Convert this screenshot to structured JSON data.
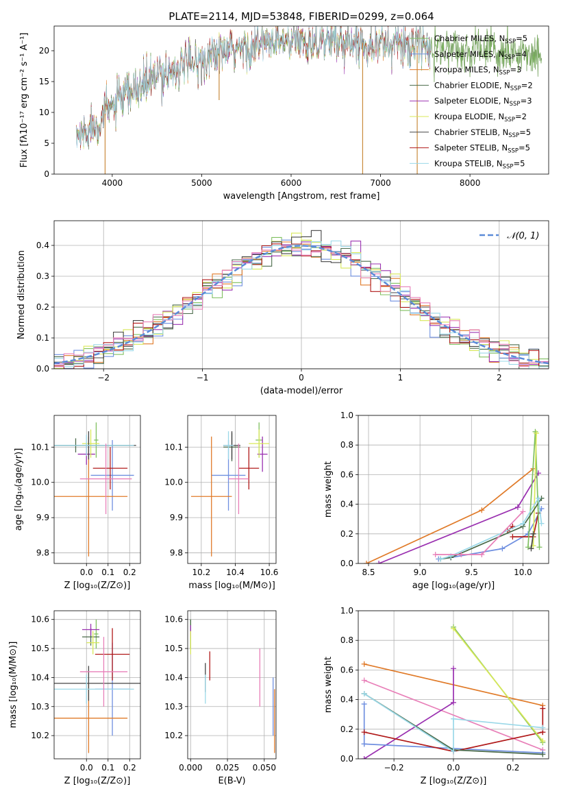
{
  "figure": {
    "title": "PLATE=2114, MJD=53848, FIBERID=0299, z=0.064"
  },
  "models": [
    {
      "name": "Chabrier MILES",
      "nssp": "5",
      "color": "#7fbf5f"
    },
    {
      "name": "Salpeter MILES",
      "nssp": "4",
      "color": "#6f8fe0"
    },
    {
      "name": "Kroupa MILES",
      "nssp": "3",
      "color": "#e07a28"
    },
    {
      "name": "Chabrier ELODIE",
      "nssp": "2",
      "color": "#4a6a4a"
    },
    {
      "name": "Salpeter ELODIE",
      "nssp": "3",
      "color": "#9a30b0"
    },
    {
      "name": "Kroupa ELODIE",
      "nssp": "2",
      "color": "#d8e858"
    },
    {
      "name": "Chabrier STELIB",
      "nssp": "5",
      "color": "#444444"
    },
    {
      "name": "Salpeter STELIB",
      "nssp": "5",
      "color": "#b01818"
    },
    {
      "name": "Kroupa STELIB",
      "nssp": "5",
      "color": "#9ad8e8"
    }
  ],
  "chart_data": [
    {
      "id": "spectrum",
      "type": "line",
      "xlabel": "wavelength [Angstrom, rest frame]",
      "ylabel": "Flux [fλ10⁻¹⁷ erg cm⁻² s⁻¹ A⁻¹]",
      "xlim": [
        3350,
        8880
      ],
      "ylim": [
        0,
        24
      ],
      "xticks": [
        4000,
        5000,
        6000,
        7000,
        8000
      ],
      "yticks": [
        0,
        5,
        10,
        15,
        20
      ],
      "legend": "top-right",
      "continuum": {
        "x": [
          3600,
          3800,
          4000,
          4200,
          4400,
          4600,
          4800,
          5000,
          5200,
          5400,
          5600,
          5800,
          6000,
          6200,
          6400,
          6600,
          6800,
          7000,
          7200,
          7400,
          7600,
          7800,
          8000,
          8200,
          8400,
          8600,
          8800
        ],
        "y": [
          6,
          8,
          11,
          13,
          15,
          16.5,
          17.5,
          18.5,
          19.5,
          20.2,
          20.8,
          21.2,
          21.4,
          21.6,
          21.6,
          21.5,
          21.3,
          21.2,
          21.0,
          20.8,
          20.5,
          20.2,
          20.0,
          19.8,
          19.5,
          19.2,
          19.0
        ]
      }
    },
    {
      "id": "residuals",
      "type": "line",
      "xlabel": "(data-model)/error",
      "ylabel": "Normed distribution",
      "xlim": [
        -2.5,
        2.5
      ],
      "ylim": [
        0,
        0.48
      ],
      "xticks": [
        -2,
        -1,
        0,
        1,
        2
      ],
      "yticks": [
        0.0,
        0.1,
        0.2,
        0.3,
        0.4
      ],
      "legend": "top-right",
      "reference": {
        "name": "𝒩(0, 1)",
        "color": "#5b8bd8",
        "mu": 0,
        "sigma": 1
      }
    },
    {
      "id": "age_vs_Z",
      "type": "scatter",
      "xlabel": "Z [log₁₀(Z/Z⊙)]",
      "ylabel": "age  [log₁₀(age/yr)]",
      "xlim": [
        -0.15,
        0.25
      ],
      "ylim": [
        9.77,
        10.19
      ],
      "xticks": [
        0.0,
        0.1,
        0.2
      ],
      "yticks": [
        9.8,
        9.9,
        10.0,
        10.1
      ],
      "points": [
        {
          "model": 0,
          "x": 0.045,
          "y": 10.12,
          "xerr": 0.01,
          "yerr": 0.05
        },
        {
          "model": 1,
          "x": 0.12,
          "y": 10.02,
          "xerr": 0.1,
          "yerr": 0.1
        },
        {
          "model": 2,
          "x": 0.01,
          "y": 9.96,
          "xerr": 0.18,
          "yerr": 0.17
        },
        {
          "model": 3,
          "x": -0.05,
          "y": 10.105,
          "xerr": 0.25,
          "yerr": 0.02
        },
        {
          "model": 4,
          "x": 0.0,
          "y": 10.08,
          "xerr": 0.04,
          "yerr": 0.03
        },
        {
          "model": 5,
          "x": 0.02,
          "y": 10.11,
          "xerr": 0.04,
          "yerr": 0.04
        },
        {
          "model": 6,
          "x": 0.01,
          "y": 10.105,
          "xerr": 0.22,
          "yerr": 0.04
        },
        {
          "model": 7,
          "x": 0.11,
          "y": 10.04,
          "xerr": 0.08,
          "yerr": 0.06
        },
        {
          "model": 8,
          "x": 0.0,
          "y": 10.105,
          "xerr": 0.22,
          "yerr": 0.03
        },
        {
          "model": 2,
          "x": 0.09,
          "y": 10.01,
          "xerr": 0.12,
          "yerr": 0.1,
          "color": "#e87fb8"
        }
      ]
    },
    {
      "id": "age_vs_mass",
      "type": "scatter",
      "xlabel": "mass [log₁₀(M/M⊙)]",
      "ylabel": "",
      "xlim": [
        10.12,
        10.64
      ],
      "ylim": [
        9.77,
        10.19
      ],
      "xticks": [
        10.2,
        10.4,
        10.6
      ],
      "yticks": [
        9.8,
        9.9,
        10.0,
        10.1
      ],
      "points": [
        {
          "model": 0,
          "x": 10.54,
          "y": 10.12,
          "xerr": 0.02,
          "yerr": 0.05
        },
        {
          "model": 1,
          "x": 10.36,
          "y": 10.02,
          "xerr": 0.1,
          "yerr": 0.1
        },
        {
          "model": 2,
          "x": 10.26,
          "y": 9.96,
          "xerr": 0.12,
          "yerr": 0.17
        },
        {
          "model": 3,
          "x": 10.38,
          "y": 10.1,
          "xerr": 0.05,
          "yerr": 0.04
        },
        {
          "model": 4,
          "x": 10.56,
          "y": 10.08,
          "xerr": 0.03,
          "yerr": 0.05
        },
        {
          "model": 5,
          "x": 10.54,
          "y": 10.11,
          "xerr": 0.06,
          "yerr": 0.04
        },
        {
          "model": 6,
          "x": 10.38,
          "y": 10.105,
          "xerr": 0.05,
          "yerr": 0.04
        },
        {
          "model": 7,
          "x": 10.48,
          "y": 10.04,
          "xerr": 0.06,
          "yerr": 0.06
        },
        {
          "model": 8,
          "x": 10.36,
          "y": 10.105,
          "xerr": 0.03,
          "yerr": 0.04
        },
        {
          "model": 2,
          "x": 10.42,
          "y": 10.01,
          "xerr": 0.06,
          "yerr": 0.1,
          "color": "#e87fb8"
        }
      ]
    },
    {
      "id": "massweight_vs_age",
      "type": "line",
      "xlabel": "age  [log₁₀(age/yr)]",
      "ylabel": "mass weight",
      "xlim": [
        8.4,
        10.25
      ],
      "ylim": [
        0,
        1.0
      ],
      "xticks": [
        8.5,
        9.0,
        9.5,
        10.0
      ],
      "yticks": [
        0.0,
        0.2,
        0.4,
        0.6,
        0.8,
        1.0
      ],
      "series": [
        {
          "model": 2,
          "x": [
            8.48,
            9.6,
            10.1
          ],
          "y": [
            0.0,
            0.36,
            0.64
          ]
        },
        {
          "model": 4,
          "x": [
            8.6,
            9.95,
            10.15
          ],
          "y": [
            0.0,
            0.38,
            0.61
          ]
        },
        {
          "model": 1,
          "x": [
            9.18,
            9.3,
            9.8,
            10.05,
            10.18
          ],
          "y": [
            0.03,
            0.04,
            0.1,
            0.2,
            0.37
          ]
        },
        {
          "model": 7,
          "x": [
            9.9,
            10.1,
            10.15
          ],
          "y": [
            0.18,
            0.18,
            0.34
          ]
        },
        {
          "model": 7,
          "x": [
            9.85,
            9.9
          ],
          "y": [
            0.22,
            0.25
          ]
        },
        {
          "model": 0,
          "x": [
            10.05,
            10.12,
            10.16
          ],
          "y": [
            0.11,
            0.89,
            0.11
          ]
        },
        {
          "model": 5,
          "x": [
            10.1,
            10.13
          ],
          "y": [
            0.12,
            0.88
          ]
        },
        {
          "model": 3,
          "x": [
            9.2,
            9.3,
            10.0,
            10.18
          ],
          "y": [
            0.03,
            0.04,
            0.25,
            0.44
          ]
        },
        {
          "model": 6,
          "x": [
            10.08,
            10.1
          ],
          "y": [
            0.1,
            0.2
          ]
        },
        {
          "model": 8,
          "x": [
            9.2,
            9.3,
            10.0,
            10.15,
            10.18
          ],
          "y": [
            0.03,
            0.05,
            0.27,
            0.44,
            0.27
          ]
        },
        {
          "model": 2,
          "x": [
            9.15,
            9.4,
            9.6,
            10.0
          ],
          "y": [
            0.06,
            0.06,
            0.06,
            0.35
          ],
          "color": "#e87fb8"
        }
      ]
    },
    {
      "id": "mass_vs_Z",
      "type": "scatter",
      "xlabel": "Z [log₁₀(Z/Z⊙)]",
      "ylabel": "mass [log₁₀(M/M⊙)]",
      "xlim": [
        -0.15,
        0.25
      ],
      "ylim": [
        10.12,
        10.63
      ],
      "xticks": [
        0.0,
        0.1,
        0.2
      ],
      "yticks": [
        10.2,
        10.3,
        10.4,
        10.5,
        10.6
      ],
      "points": [
        {
          "model": 0,
          "x": 0.045,
          "y": 10.55,
          "xerr": 0.01,
          "yerr": 0.05
        },
        {
          "model": 1,
          "x": 0.12,
          "y": 10.36,
          "xerr": 0.08,
          "yerr": 0.16
        },
        {
          "model": 2,
          "x": 0.01,
          "y": 10.26,
          "xerr": 0.18,
          "yerr": 0.12
        },
        {
          "model": 3,
          "x": 0.02,
          "y": 10.54,
          "xerr": 0.04,
          "yerr": 0.03
        },
        {
          "model": 4,
          "x": 0.02,
          "y": 10.565,
          "xerr": 0.04,
          "yerr": 0.02
        },
        {
          "model": 5,
          "x": 0.03,
          "y": 10.52,
          "xerr": 0.03,
          "yerr": 0.04
        },
        {
          "model": 6,
          "x": 0.01,
          "y": 10.38,
          "xerr": 0.24,
          "yerr": 0.06
        },
        {
          "model": 7,
          "x": 0.12,
          "y": 10.48,
          "xerr": 0.08,
          "yerr": 0.09
        },
        {
          "model": 8,
          "x": 0.0,
          "y": 10.36,
          "xerr": 0.22,
          "yerr": 0.05
        },
        {
          "model": 2,
          "x": 0.08,
          "y": 10.42,
          "xerr": 0.11,
          "yerr": 0.12,
          "color": "#e87fb8"
        }
      ]
    },
    {
      "id": "mass_vs_ebv",
      "type": "scatter",
      "xlabel": "E(B-V)",
      "ylabel": "",
      "xlim": [
        -0.002,
        0.058
      ],
      "ylim": [
        10.12,
        10.63
      ],
      "xticks": [
        0.0,
        0.025,
        0.05
      ],
      "yticks": [
        10.2,
        10.3,
        10.4,
        10.5,
        10.6
      ],
      "points": [
        {
          "model": 0,
          "x": 0.0,
          "y": 10.55,
          "xerr": 0.0,
          "yerr": 0.05
        },
        {
          "model": 1,
          "x": 0.056,
          "y": 10.3,
          "xerr": 0.0,
          "yerr": 0.1
        },
        {
          "model": 2,
          "x": 0.057,
          "y": 10.25,
          "xerr": 0.0,
          "yerr": 0.11
        },
        {
          "model": 3,
          "x": 0.0,
          "y": 10.55,
          "xerr": 0.0,
          "yerr": 0.05
        },
        {
          "model": 4,
          "x": 0.0,
          "y": 10.56,
          "xerr": 0.0,
          "yerr": 0.02
        },
        {
          "model": 5,
          "x": 0.0,
          "y": 10.52,
          "xerr": 0.0,
          "yerr": 0.04
        },
        {
          "model": 6,
          "x": 0.01,
          "y": 10.4,
          "xerr": 0.0,
          "yerr": 0.05
        },
        {
          "model": 7,
          "x": 0.013,
          "y": 10.44,
          "xerr": 0.0,
          "yerr": 0.05
        },
        {
          "model": 8,
          "x": 0.01,
          "y": 10.36,
          "xerr": 0.0,
          "yerr": 0.05
        },
        {
          "model": 2,
          "x": 0.047,
          "y": 10.4,
          "xerr": 0.0,
          "yerr": 0.1,
          "color": "#e87fb8"
        }
      ]
    },
    {
      "id": "massweight_vs_Z",
      "type": "line",
      "xlabel": "Z [log₁₀(Z/Z⊙)]",
      "ylabel": "mass weight",
      "xlim": [
        -0.32,
        0.32
      ],
      "ylim": [
        0,
        1.0
      ],
      "xticks": [
        -0.2,
        0.0,
        0.2
      ],
      "yticks": [
        0.0,
        0.2,
        0.4,
        0.6,
        0.8,
        1.0
      ],
      "series": [
        {
          "model": 2,
          "x": [
            -0.3,
            0.3
          ],
          "y": [
            0.64,
            0.36
          ]
        },
        {
          "model": 2,
          "x": [
            -0.3,
            0.3
          ],
          "y": [
            0.53,
            0.06
          ],
          "color": "#e87fb8"
        },
        {
          "model": 4,
          "x": [
            -0.3,
            0.0,
            0.0
          ],
          "y": [
            0.0,
            0.38,
            0.61
          ]
        },
        {
          "model": 1,
          "x": [
            -0.3,
            0.3
          ],
          "y": [
            0.1,
            0.04
          ]
        },
        {
          "model": 1,
          "x": [
            -0.3,
            -0.3
          ],
          "y": [
            0.1,
            0.37
          ]
        },
        {
          "model": 7,
          "x": [
            -0.3,
            0.0,
            0.3
          ],
          "y": [
            0.18,
            0.05,
            0.18
          ]
        },
        {
          "model": 7,
          "x": [
            0.3,
            0.3
          ],
          "y": [
            0.18,
            0.34
          ]
        },
        {
          "model": 0,
          "x": [
            0.0,
            0.3
          ],
          "y": [
            0.89,
            0.11
          ]
        },
        {
          "model": 5,
          "x": [
            0.0,
            0.3
          ],
          "y": [
            0.88,
            0.12
          ]
        },
        {
          "model": 3,
          "x": [
            -0.3,
            0.0,
            0.3
          ],
          "y": [
            0.44,
            0.06,
            0.03
          ]
        },
        {
          "model": 8,
          "x": [
            -0.3,
            0.0,
            0.0,
            0.3
          ],
          "y": [
            0.44,
            0.05,
            0.27,
            0.21
          ]
        }
      ]
    }
  ]
}
